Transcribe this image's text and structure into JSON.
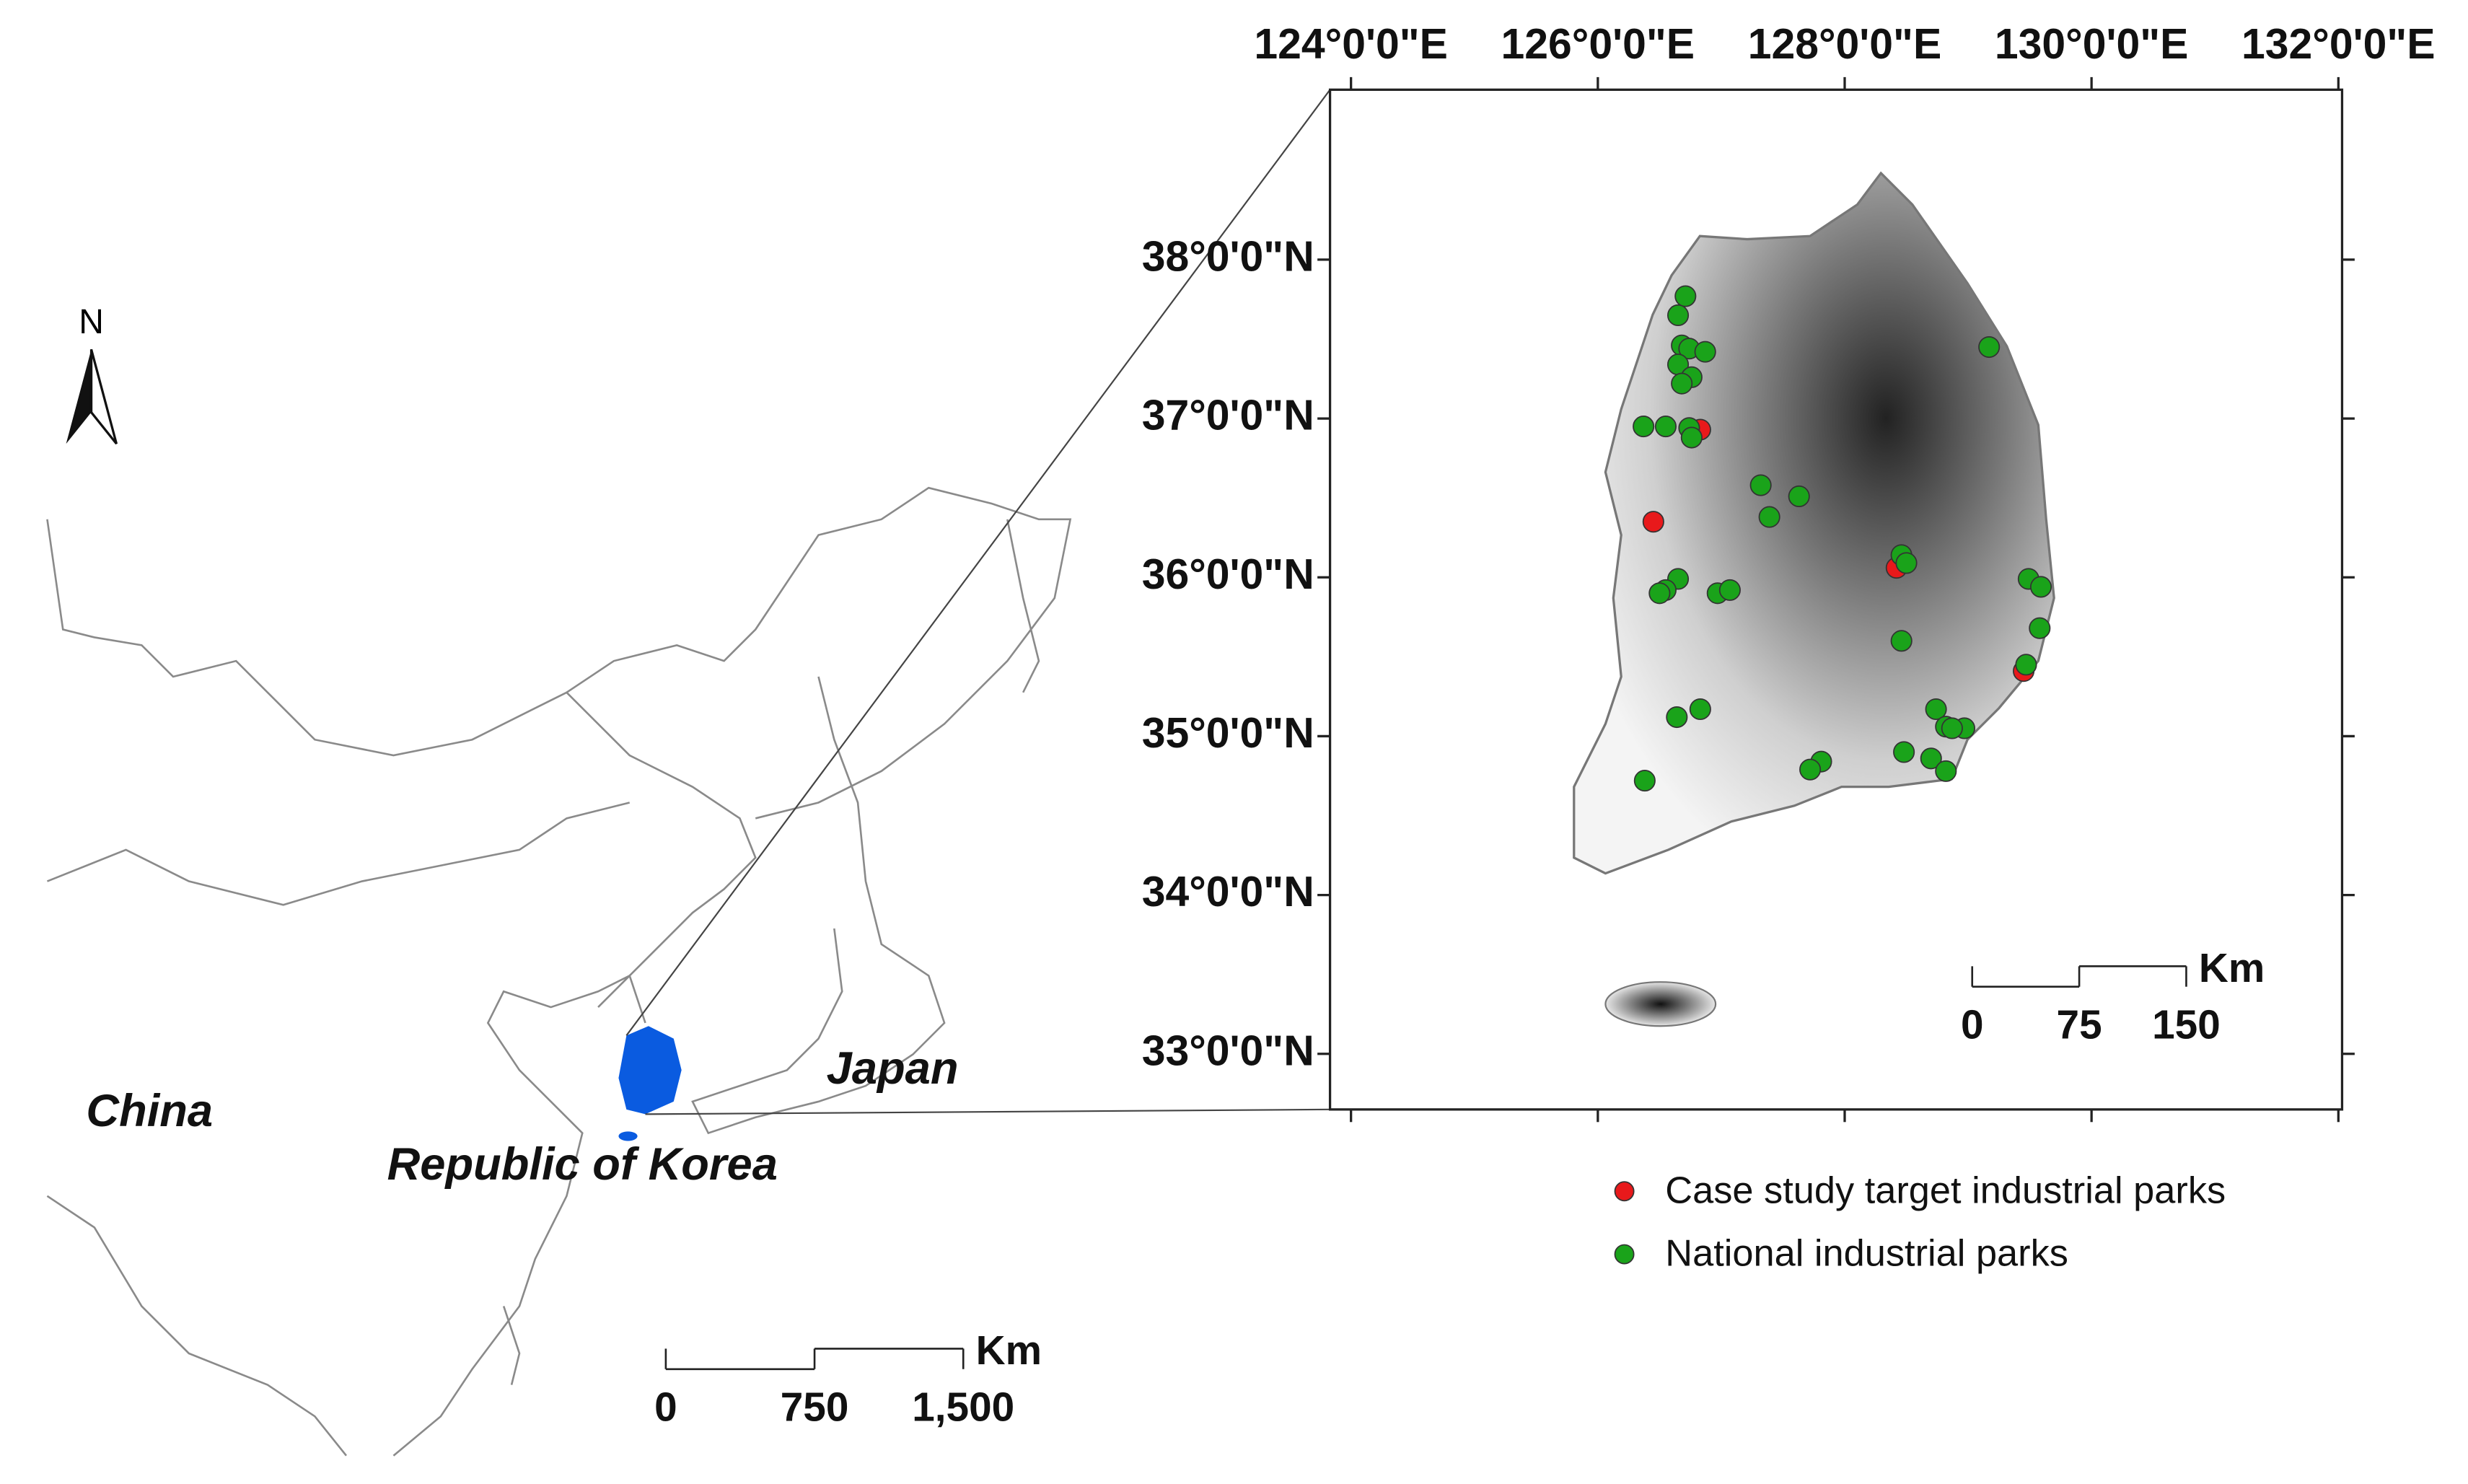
{
  "inset_map": {
    "north_label": "N",
    "labels": {
      "china": "China",
      "japan": "Japan",
      "korea": "Republic of Korea"
    },
    "scale_bar": {
      "unit": "Km",
      "ticks": [
        0,
        750,
        {
          "value": 1500,
          "label": "1,500"
        }
      ]
    }
  },
  "main_map": {
    "xlim": [
      123.83,
      132.03
    ],
    "ylim": [
      32.65,
      39.07
    ],
    "xticks": [
      {
        "value": 124,
        "label": "124°0'0\"E"
      },
      {
        "value": 126,
        "label": "126°0'0\"E"
      },
      {
        "value": 128,
        "label": "128°0'0\"E"
      },
      {
        "value": 130,
        "label": "130°0'0\"E"
      },
      {
        "value": 132,
        "label": "132°0'0\"E"
      }
    ],
    "yticks": [
      {
        "value": 33,
        "label": "33°0'0\"N"
      },
      {
        "value": 34,
        "label": "34°0'0\"N"
      },
      {
        "value": 35,
        "label": "35°0'0\"N"
      },
      {
        "value": 36,
        "label": "36°0'0\"N"
      },
      {
        "value": 37,
        "label": "37°0'0\"N"
      },
      {
        "value": 38,
        "label": "38°0'0\"N"
      }
    ],
    "scale_bar": {
      "unit": "Km",
      "ticks": [
        0,
        75,
        150
      ]
    },
    "series": [
      {
        "name": "Case study target industrial parks",
        "color": "#e8191b",
        "lon": [
          126.83,
          126.45,
          128.42,
          129.45
        ],
        "lat": [
          36.93,
          36.35,
          36.06,
          35.41
        ]
      },
      {
        "name": "National industrial parks",
        "color": "#1aa31a",
        "lon": [
          126.71,
          126.65,
          126.68,
          126.74,
          126.87,
          126.65,
          126.76,
          126.68,
          129.17,
          126.37,
          126.55,
          126.74,
          126.76,
          127.32,
          127.63,
          127.39,
          128.46,
          128.5,
          126.65,
          126.55,
          126.5,
          126.97,
          127.07,
          129.49,
          129.59,
          129.58,
          128.46,
          129.47,
          126.64,
          126.83,
          128.74,
          128.82,
          128.97,
          128.87,
          128.48,
          128.7,
          128.82,
          127.81,
          127.72,
          126.38
        ],
        "lat": [
          37.77,
          37.65,
          37.46,
          37.44,
          37.42,
          37.34,
          37.26,
          37.22,
          37.45,
          36.95,
          36.95,
          36.94,
          36.88,
          36.58,
          36.51,
          36.38,
          36.14,
          36.09,
          35.99,
          35.92,
          35.9,
          35.9,
          35.92,
          35.99,
          35.94,
          35.68,
          35.6,
          35.45,
          35.12,
          35.17,
          35.17,
          35.06,
          35.05,
          35.05,
          34.9,
          34.86,
          34.78,
          34.84,
          34.79,
          34.72
        ]
      }
    ]
  }
}
